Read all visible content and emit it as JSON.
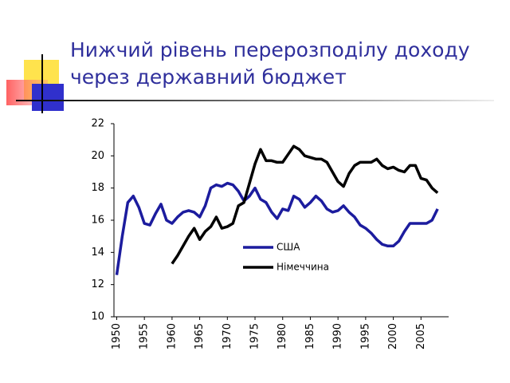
{
  "chart_data": {
    "type": "line",
    "title": [
      "Нижчий рівень перерозподілу доходу",
      "через державний бюджет"
    ],
    "x": [
      1950,
      1951,
      1952,
      1953,
      1954,
      1955,
      1956,
      1957,
      1958,
      1959,
      1960,
      1961,
      1962,
      1963,
      1964,
      1965,
      1966,
      1967,
      1968,
      1969,
      1970,
      1971,
      1972,
      1973,
      1974,
      1975,
      1976,
      1977,
      1978,
      1979,
      1980,
      1981,
      1982,
      1983,
      1984,
      1985,
      1986,
      1987,
      1988,
      1989,
      1990,
      1991,
      1992,
      1993,
      1994,
      1995,
      1996,
      1997,
      1998,
      1999,
      2000,
      2001,
      2002,
      2003,
      2004,
      2005,
      2006,
      2007,
      2008
    ],
    "series": [
      {
        "name": "США",
        "color": "#1c1c9e",
        "values": [
          12.6,
          15.0,
          17.1,
          17.5,
          16.8,
          15.8,
          15.7,
          16.4,
          17.0,
          16.0,
          15.8,
          16.2,
          16.5,
          16.6,
          16.5,
          16.2,
          16.9,
          18.0,
          18.2,
          18.1,
          18.3,
          18.2,
          17.8,
          17.2,
          17.5,
          18.0,
          17.3,
          17.1,
          16.5,
          16.1,
          16.7,
          16.6,
          17.5,
          17.3,
          16.8,
          17.1,
          17.5,
          17.2,
          16.7,
          16.5,
          16.6,
          16.9,
          16.5,
          16.2,
          15.7,
          15.5,
          15.2,
          14.8,
          14.5,
          14.4,
          14.4,
          14.7,
          15.3,
          15.8,
          15.8,
          15.8,
          15.8,
          16.0,
          16.7
        ]
      },
      {
        "name": "Німеччина",
        "color": "#000000",
        "values": [
          null,
          null,
          null,
          null,
          null,
          null,
          null,
          null,
          null,
          null,
          13.3,
          13.8,
          14.4,
          15.0,
          15.5,
          14.8,
          15.3,
          15.6,
          16.2,
          15.5,
          15.6,
          15.8,
          16.9,
          17.1,
          18.3,
          19.5,
          20.4,
          19.7,
          19.7,
          19.6,
          19.6,
          20.1,
          20.6,
          20.4,
          20.0,
          19.9,
          19.8,
          19.8,
          19.6,
          19.0,
          18.4,
          18.1,
          18.9,
          19.4,
          19.6,
          19.6,
          19.6,
          19.8,
          19.4,
          19.2,
          19.3,
          19.1,
          19.0,
          19.4,
          19.4,
          18.6,
          18.5,
          18.0,
          17.7
        ]
      }
    ],
    "xlim": [
      1949.5,
      2010
    ],
    "xticks": [
      1950,
      1955,
      1960,
      1965,
      1970,
      1975,
      1980,
      1985,
      1990,
      1995,
      2000,
      2005
    ],
    "ylim": [
      10,
      22
    ],
    "yticks": [
      10,
      12,
      14,
      16,
      18,
      20,
      22
    ],
    "legend": "lower center"
  }
}
